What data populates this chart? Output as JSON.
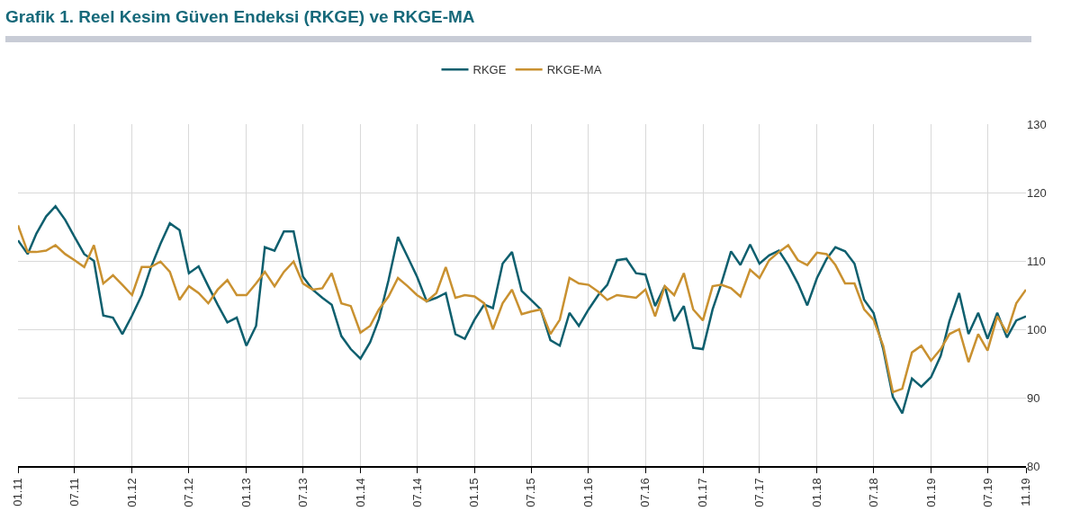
{
  "chart_data": {
    "type": "line",
    "title": "Grafik 1. Reel Kesim Güven Endeksi (RKGE) ve RKGE-MA",
    "x": [
      "2011-01",
      "2011-02",
      "2011-03",
      "2011-04",
      "2011-05",
      "2011-06",
      "2011-07",
      "2011-08",
      "2011-09",
      "2011-10",
      "2011-11",
      "2011-12",
      "2012-01",
      "2012-02",
      "2012-03",
      "2012-04",
      "2012-05",
      "2012-06",
      "2012-07",
      "2012-08",
      "2012-09",
      "2012-10",
      "2012-11",
      "2012-12",
      "2013-01",
      "2013-02",
      "2013-03",
      "2013-04",
      "2013-05",
      "2013-06",
      "2013-07",
      "2013-08",
      "2013-09",
      "2013-10",
      "2013-11",
      "2013-12",
      "2014-01",
      "2014-02",
      "2014-03",
      "2014-04",
      "2014-05",
      "2014-06",
      "2014-07",
      "2014-08",
      "2014-09",
      "2014-10",
      "2014-11",
      "2014-12",
      "2015-01",
      "2015-02",
      "2015-03",
      "2015-04",
      "2015-05",
      "2015-06",
      "2015-07",
      "2015-08",
      "2015-09",
      "2015-10",
      "2015-11",
      "2015-12",
      "2016-01",
      "2016-02",
      "2016-03",
      "2016-04",
      "2016-05",
      "2016-06",
      "2016-07",
      "2016-08",
      "2016-09",
      "2016-10",
      "2016-11",
      "2016-12",
      "2017-01",
      "2017-02",
      "2017-03",
      "2017-04",
      "2017-05",
      "2017-06",
      "2017-07",
      "2017-08",
      "2017-09",
      "2017-10",
      "2017-11",
      "2017-12",
      "2018-01",
      "2018-02",
      "2018-03",
      "2018-04",
      "2018-05",
      "2018-06",
      "2018-07",
      "2018-08",
      "2018-09",
      "2018-10",
      "2018-11",
      "2018-12",
      "2019-01",
      "2019-02",
      "2019-03",
      "2019-04",
      "2019-05",
      "2019-06",
      "2019-07",
      "2019-08",
      "2019-09",
      "2019-10",
      "2019-11"
    ],
    "series": [
      {
        "name": "RKGE",
        "color": "#0e5f6e",
        "values": [
          113,
          111,
          114,
          116.5,
          118,
          116,
          113.5,
          111,
          110,
          102,
          101.7,
          99.3,
          102,
          105,
          109,
          112.5,
          115.5,
          114.5,
          108.2,
          109.2,
          106.3,
          103.6,
          101,
          101.7,
          97.6,
          100.5,
          112,
          111.5,
          114.3,
          114.3,
          107.7,
          105.8,
          104.6,
          103.6,
          99,
          97.1,
          95.7,
          98.1,
          101.5,
          107.2,
          113.5,
          110.6,
          107.7,
          104.1,
          104.6,
          105.3,
          99.3,
          98.6,
          101.4,
          103.6,
          103.1,
          109.6,
          111.3,
          105.6,
          104.3,
          102.9,
          98.4,
          97.6,
          102.4,
          100.5,
          102.9,
          105,
          106.5,
          110.1,
          110.3,
          108.2,
          108,
          103.4,
          106.3,
          101.2,
          103.4,
          97.3,
          97.1,
          102.9,
          106.7,
          111.4,
          109.4,
          112.4,
          109.6,
          110.8,
          111.5,
          109.4,
          106.7,
          103.5,
          107.5,
          110.3,
          112,
          111.4,
          109.6,
          104.3,
          102.4,
          97.1,
          90.1,
          87.7,
          92.8,
          91.6,
          93,
          96.1,
          101.2,
          105.3,
          99.3,
          102.4,
          98.6,
          102.4,
          98.8,
          101.3,
          101.9
        ]
      },
      {
        "name": "RKGE-MA",
        "color": "#c99130",
        "values": [
          115.2,
          111.3,
          111.3,
          111.5,
          112.3,
          111,
          110.1,
          109.1,
          112.3,
          106.7,
          107.9,
          106.5,
          105,
          109.1,
          109.1,
          109.9,
          108.4,
          104.3,
          106.3,
          105.3,
          103.8,
          105.8,
          107.2,
          105,
          105,
          106.7,
          108.4,
          106.3,
          108.4,
          109.9,
          106.7,
          105.8,
          106,
          108.2,
          103.8,
          103.4,
          99.5,
          100.5,
          102.9,
          104.8,
          107.5,
          106.3,
          105,
          104.1,
          105.3,
          109.1,
          104.6,
          105,
          104.8,
          103.8,
          100,
          103.8,
          105.8,
          102.2,
          102.6,
          102.9,
          99.3,
          101.4,
          107.5,
          106.7,
          106.5,
          105.5,
          104.3,
          105,
          104.8,
          104.6,
          105.8,
          101.9,
          106.3,
          105,
          108.2,
          102.9,
          101.3,
          106.3,
          106.5,
          106,
          104.8,
          108.7,
          107.5,
          110.1,
          111.3,
          112.3,
          110.1,
          109.4,
          111.2,
          111,
          109.4,
          106.7,
          106.7,
          102.9,
          101.4,
          97.6,
          90.8,
          91.3,
          96.6,
          97.6,
          95.4,
          97.1,
          99.3,
          100,
          95.2,
          99.3,
          96.9,
          101.9,
          99.5,
          103.8,
          105.8
        ]
      }
    ],
    "xlim": [
      "2011-01",
      "2019-11"
    ],
    "xticks": [
      {
        "value": "2011-01",
        "label": "01.11"
      },
      {
        "value": "2011-07",
        "label": "07.11"
      },
      {
        "value": "2012-01",
        "label": "01.12"
      },
      {
        "value": "2012-07",
        "label": "07.12"
      },
      {
        "value": "2013-01",
        "label": "01.13"
      },
      {
        "value": "2013-07",
        "label": "07.13"
      },
      {
        "value": "2014-01",
        "label": "01.14"
      },
      {
        "value": "2014-07",
        "label": "07.14"
      },
      {
        "value": "2015-01",
        "label": "01.15"
      },
      {
        "value": "2015-07",
        "label": "07.15"
      },
      {
        "value": "2016-01",
        "label": "01.16"
      },
      {
        "value": "2016-07",
        "label": "07.16"
      },
      {
        "value": "2017-01",
        "label": "01.17"
      },
      {
        "value": "2017-07",
        "label": "07.17"
      },
      {
        "value": "2018-01",
        "label": "01.18"
      },
      {
        "value": "2018-07",
        "label": "07.18"
      },
      {
        "value": "2019-01",
        "label": "01.19"
      },
      {
        "value": "2019-07",
        "label": "07.19"
      },
      {
        "value": "2019-11",
        "label": "11.19"
      }
    ],
    "ylim": [
      80,
      130
    ],
    "yticks": [
      80,
      90,
      100,
      110,
      120,
      130
    ],
    "grid": true,
    "legend": "top",
    "marker": "none",
    "line_style": "solid"
  }
}
